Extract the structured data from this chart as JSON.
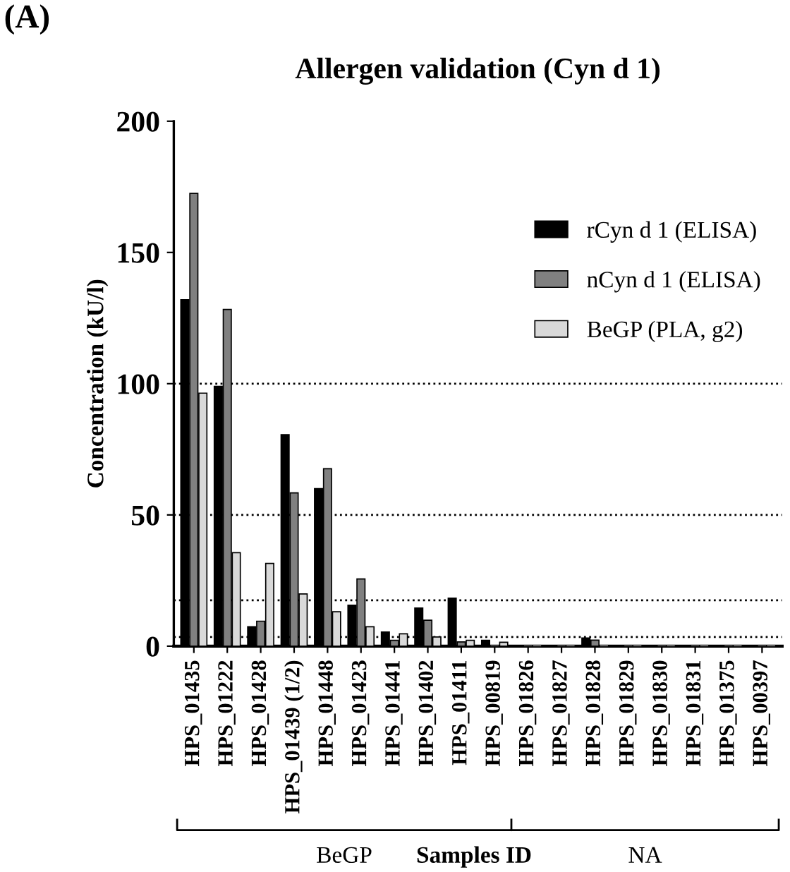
{
  "chart_data": {
    "type": "bar",
    "title": "Allergen validation (Cyn d 1)",
    "xlabel": "Samples ID",
    "ylabel": "Concentration (kU/l)",
    "categories": [
      "HPS_01435",
      "HPS_01222",
      "HPS_01428",
      "HPS_01439 (1/2)",
      "HPS_01448",
      "HPS_01423",
      "HPS_01441",
      "HPS_01402",
      "HPS_01411",
      "HPS_00819",
      "HPS_01826",
      "HPS_01827",
      "HPS_01828",
      "HPS_01829",
      "HPS_01830",
      "HPS_01831",
      "HPS_01375",
      "HPS_00397"
    ],
    "series": [
      {
        "name": "rCyn d 1 (ELISA)",
        "color": "#000000",
        "values": [
          132,
          99,
          7.4,
          80.6,
          60,
          15.6,
          5.4,
          14.5,
          18.3,
          2.2,
          0,
          0,
          3.1,
          0,
          0,
          0,
          0,
          0
        ]
      },
      {
        "name": "nCyn d 1 (ELISA)",
        "color": "#808080",
        "values": [
          172.5,
          128.3,
          9.5,
          58.4,
          67.6,
          25.6,
          2.2,
          9.9,
          1.6,
          0,
          0,
          0,
          2.3,
          0,
          0,
          0,
          0,
          0
        ]
      },
      {
        "name": "BeGP (PLA, g2)",
        "color": "#d9d9d9",
        "values": [
          96.4,
          35.6,
          31.5,
          19.9,
          13.1,
          7.4,
          4.7,
          3.5,
          2.2,
          1.5,
          0,
          0,
          0,
          0,
          0,
          0,
          0,
          0
        ]
      }
    ],
    "ylim": [
      0,
      200
    ],
    "yticks": [
      0,
      50,
      100,
      150,
      200
    ],
    "grid": false,
    "legend": "top right",
    "ref_lines": [
      {
        "axis": "y",
        "value": 100,
        "line_style": "dotted"
      },
      {
        "axis": "y",
        "value": 50,
        "line_style": "dotted"
      },
      {
        "axis": "y",
        "value": 17.5,
        "line_style": "dotted"
      },
      {
        "axis": "y",
        "value": 3.5,
        "line_style": "dotted"
      }
    ],
    "annotations": [
      "(A)",
      "BeGP",
      "NA"
    ]
  }
}
